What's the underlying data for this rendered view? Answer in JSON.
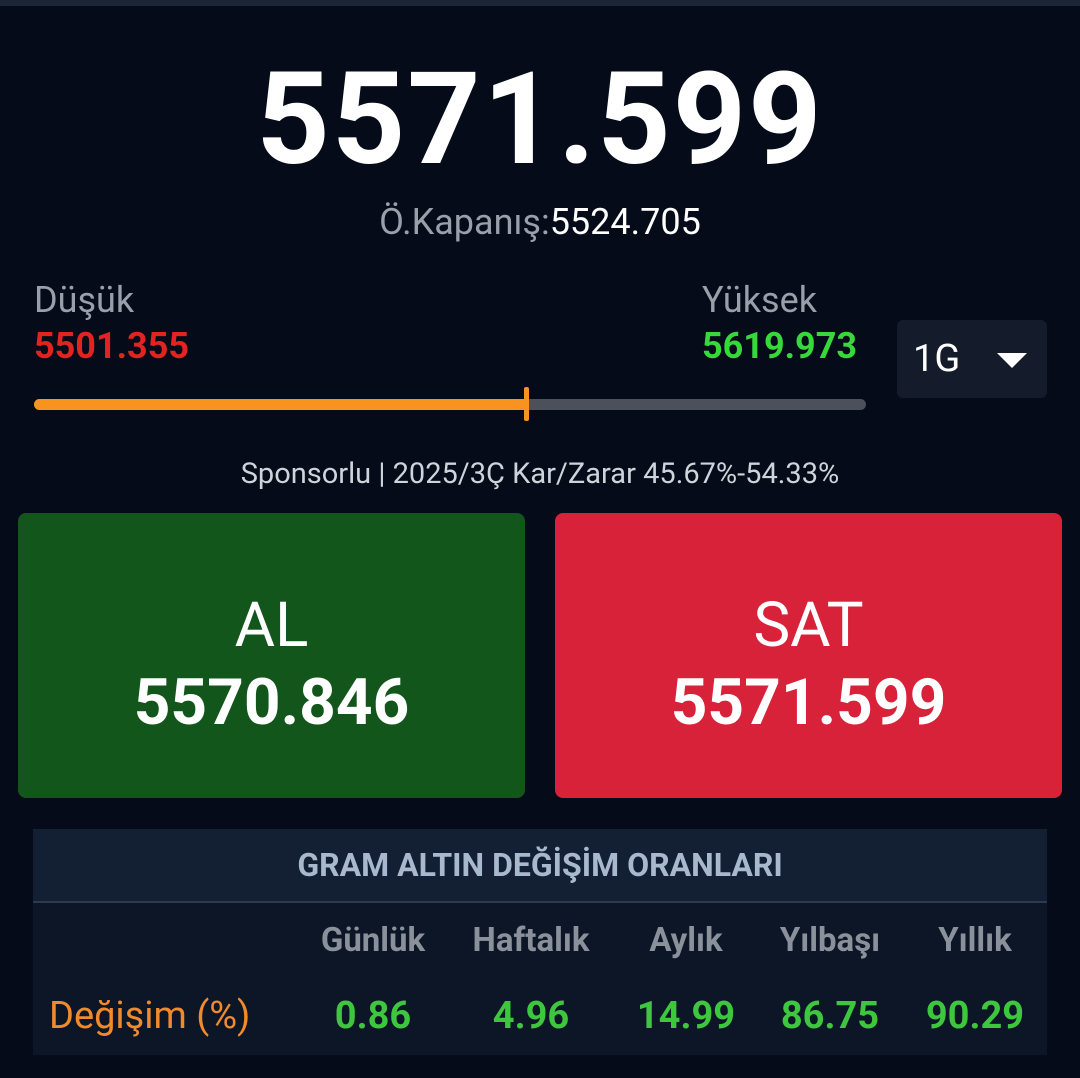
{
  "price": "5571.599",
  "previous_close": {
    "label": "Ö.Kapanış:",
    "value": "5524.705"
  },
  "range": {
    "low_label": "Düşük",
    "low": "5501.355",
    "high_label": "Yüksek",
    "high": "5619.973"
  },
  "period": "1G",
  "sponsor": "Sponsorlu | 2025/3Ç Kar/Zarar 45.67%-54.33%",
  "buy": {
    "label": "AL",
    "value": "5570.846"
  },
  "sell": {
    "label": "SAT",
    "value": "5571.599"
  },
  "table": {
    "title": "GRAM ALTIN DEĞİŞİM ORANLARI",
    "columns": [
      "Günlük",
      "Haftalık",
      "Aylık",
      "Yılbaşı",
      "Yıllık"
    ],
    "rows": [
      {
        "label": "Değişim (%)",
        "values": [
          "0.86",
          "4.96",
          "14.99",
          "86.75",
          "90.29"
        ]
      }
    ]
  }
}
